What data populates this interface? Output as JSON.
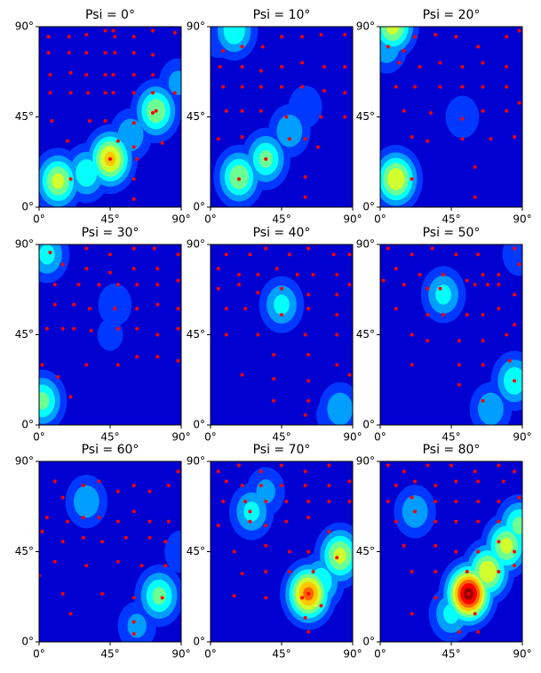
{
  "chart_data": [
    {
      "type": "scatter",
      "title": "Psi = 0°",
      "xlim": [
        0,
        90
      ],
      "ylim": [
        0,
        90
      ],
      "xticks": [
        {
          "value": 0,
          "label": "0°"
        },
        {
          "value": 45,
          "label": "45°"
        },
        {
          "value": 90,
          "label": "90°"
        }
      ],
      "yticks": [
        {
          "value": 0,
          "label": "0°"
        },
        {
          "value": 45,
          "label": "45°"
        },
        {
          "value": 90,
          "label": "90°"
        }
      ],
      "color": "#ff0000",
      "x": [
        6,
        19,
        30,
        42,
        47,
        48,
        60,
        72,
        86,
        6,
        19,
        30,
        42,
        48,
        60,
        72,
        7,
        20,
        30,
        42,
        47,
        60,
        72,
        7,
        20,
        31,
        42,
        47,
        60,
        72,
        86,
        8,
        32,
        42,
        60,
        72,
        18,
        50,
        60,
        62,
        78,
        20,
        45,
        60,
        60,
        74
      ],
      "y": [
        85,
        85,
        86,
        88,
        88,
        85,
        85,
        88,
        87,
        77,
        77,
        77,
        77,
        77,
        77,
        76,
        66,
        67,
        66,
        66,
        66,
        66,
        66,
        57,
        57,
        57,
        57,
        57,
        57,
        57,
        57,
        43,
        43,
        43,
        42,
        47,
        33,
        33,
        30,
        24,
        32,
        14,
        24,
        14,
        4,
        48
      ],
      "density": {
        "x": [
          12,
          45,
          30,
          74,
          88,
          58
        ],
        "y": [
          13,
          24,
          17,
          48,
          62,
          36
        ],
        "level": [
          0.55,
          0.65,
          0.4,
          0.5,
          0.25,
          0.3
        ]
      }
    },
    {
      "type": "scatter",
      "title": "Psi = 10°",
      "xlim": [
        0,
        90
      ],
      "ylim": [
        0,
        90
      ],
      "xticks": [
        {
          "value": 0,
          "label": "0°"
        },
        {
          "value": 45,
          "label": "45°"
        },
        {
          "value": 90,
          "label": "90°"
        }
      ],
      "yticks": [
        {
          "value": 0,
          "label": "0°"
        },
        {
          "value": 45,
          "label": "45°"
        },
        {
          "value": 90,
          "label": "90°"
        }
      ],
      "color": "#ff0000",
      "x": [
        8,
        20,
        33,
        45,
        58,
        70,
        85,
        6,
        20,
        32,
        45,
        58,
        72,
        85,
        8,
        20,
        32,
        45,
        58,
        72,
        85,
        10,
        20,
        32,
        48,
        70,
        85,
        20,
        50,
        60,
        68,
        35,
        18,
        60,
        60,
        5
      ],
      "y": [
        78,
        80,
        80,
        85,
        85,
        86,
        86,
        70,
        70,
        68,
        70,
        72,
        70,
        70,
        60,
        60,
        60,
        60,
        60,
        58,
        57,
        48,
        48,
        48,
        45,
        45,
        45,
        35,
        34,
        34,
        30,
        24,
        14,
        15,
        5,
        34
      ],
      "density": {
        "x": [
          18,
          35,
          50,
          60,
          15,
          5
        ],
        "y": [
          15,
          24,
          38,
          50,
          88,
          85
        ],
        "level": [
          0.5,
          0.45,
          0.3,
          0.2,
          0.4,
          0.2
        ]
      }
    },
    {
      "type": "scatter",
      "title": "Psi = 20°",
      "xlim": [
        0,
        90
      ],
      "ylim": [
        0,
        90
      ],
      "xticks": [
        {
          "value": 0,
          "label": "0°"
        },
        {
          "value": 45,
          "label": "45°"
        },
        {
          "value": 90,
          "label": "90°"
        }
      ],
      "yticks": [
        {
          "value": 0,
          "label": "0°"
        },
        {
          "value": 45,
          "label": "45°"
        },
        {
          "value": 90,
          "label": "90°"
        }
      ],
      "color": "#ff0000",
      "x": [
        5,
        15,
        22,
        35,
        48,
        62,
        80,
        88,
        12,
        25,
        38,
        52,
        65,
        80,
        10,
        22,
        38,
        52,
        65,
        80,
        88,
        15,
        32,
        52,
        65,
        80,
        20,
        30,
        52,
        70,
        20,
        60,
        60,
        85
      ],
      "y": [
        80,
        78,
        85,
        86,
        85,
        80,
        85,
        88,
        72,
        70,
        72,
        70,
        72,
        70,
        60,
        60,
        60,
        60,
        60,
        60,
        52,
        48,
        47,
        44,
        48,
        48,
        35,
        33,
        34,
        34,
        14,
        20,
        5,
        35
      ],
      "density": {
        "x": [
          10,
          8,
          4,
          52
        ],
        "y": [
          14,
          90,
          80,
          45
        ],
        "level": [
          0.6,
          0.55,
          0.3,
          0.2
        ]
      }
    },
    {
      "type": "scatter",
      "title": "Psi = 30°",
      "xlim": [
        0,
        90
      ],
      "ylim": [
        0,
        90
      ],
      "xticks": [
        {
          "value": 0,
          "label": "0°"
        },
        {
          "value": 45,
          "label": "45°"
        },
        {
          "value": 90,
          "label": "90°"
        }
      ],
      "yticks": [
        {
          "value": 0,
          "label": "0°"
        },
        {
          "value": 45,
          "label": "45°"
        },
        {
          "value": 90,
          "label": "90°"
        }
      ],
      "color": "#ff0000",
      "x": [
        7,
        30,
        45,
        60,
        73,
        88,
        15,
        30,
        45,
        60,
        75,
        10,
        25,
        38,
        50,
        62,
        75,
        88,
        10,
        22,
        32,
        48,
        62,
        75,
        88,
        5,
        15,
        22,
        33,
        50,
        62,
        75,
        88,
        2,
        12,
        20,
        30,
        50,
        62,
        75,
        88
      ],
      "y": [
        86,
        88,
        85,
        88,
        88,
        85,
        80,
        78,
        76,
        78,
        78,
        70,
        70,
        70,
        70,
        70,
        70,
        72,
        60,
        60,
        58,
        58,
        58,
        60,
        58,
        48,
        48,
        48,
        47,
        48,
        48,
        45,
        48,
        30,
        24,
        14,
        30,
        30,
        34,
        34,
        32
      ],
      "density": {
        "x": [
          2,
          5,
          48,
          45
        ],
        "y": [
          12,
          85,
          60,
          45
        ],
        "level": [
          0.45,
          0.35,
          0.2,
          0.15
        ]
      }
    },
    {
      "type": "scatter",
      "title": "Psi = 40°",
      "xlim": [
        0,
        90
      ],
      "ylim": [
        0,
        90
      ],
      "xticks": [
        {
          "value": 0,
          "label": "0°"
        },
        {
          "value": 45,
          "label": "45°"
        },
        {
          "value": 90,
          "label": "90°"
        }
      ],
      "yticks": [
        {
          "value": 0,
          "label": "0°"
        },
        {
          "value": 45,
          "label": "45°"
        },
        {
          "value": 90,
          "label": "90°"
        }
      ],
      "color": "#ff0000",
      "x": [
        10,
        25,
        35,
        50,
        62,
        78,
        88,
        5,
        18,
        30,
        42,
        55,
        65,
        80,
        5,
        18,
        30,
        45,
        62,
        80,
        88,
        10,
        22,
        45,
        62,
        80,
        10,
        30,
        60,
        80,
        40,
        62,
        80,
        20,
        40,
        62,
        40,
        62,
        60,
        88
      ],
      "y": [
        85,
        85,
        88,
        85,
        88,
        85,
        85,
        78,
        75,
        75,
        78,
        75,
        75,
        75,
        68,
        70,
        66,
        68,
        65,
        65,
        70,
        58,
        58,
        55,
        58,
        55,
        45,
        45,
        45,
        45,
        35,
        35,
        30,
        25,
        23,
        22,
        12,
        12,
        5,
        25
      ],
      "density": {
        "x": [
          45,
          82,
          75
        ],
        "y": [
          60,
          8,
          5
        ],
        "level": [
          0.35,
          0.3,
          0.15
        ]
      }
    },
    {
      "type": "scatter",
      "title": "Psi = 50°",
      "xlim": [
        0,
        90
      ],
      "ylim": [
        0,
        90
      ],
      "xticks": [
        {
          "value": 0,
          "label": "0°"
        },
        {
          "value": 45,
          "label": "45°"
        },
        {
          "value": 90,
          "label": "90°"
        }
      ],
      "yticks": [
        {
          "value": 0,
          "label": "0°"
        },
        {
          "value": 45,
          "label": "45°"
        },
        {
          "value": 90,
          "label": "90°"
        }
      ],
      "color": "#ff0000",
      "x": [
        5,
        20,
        33,
        48,
        62,
        85,
        10,
        25,
        40,
        55,
        65,
        75,
        88,
        2,
        15,
        30,
        38,
        60,
        68,
        75,
        85,
        10,
        30,
        40,
        55,
        65,
        75,
        85,
        20,
        30,
        50,
        65,
        80,
        20,
        50,
        65,
        82,
        50,
        85,
        65
      ],
      "y": [
        88,
        85,
        88,
        85,
        85,
        88,
        78,
        75,
        75,
        72,
        75,
        75,
        80,
        72,
        70,
        68,
        68,
        70,
        70,
        70,
        65,
        58,
        55,
        55,
        55,
        55,
        58,
        50,
        45,
        42,
        42,
        42,
        45,
        30,
        30,
        30,
        32,
        20,
        22,
        12
      ],
      "density": {
        "x": [
          40,
          85,
          70,
          88
        ],
        "y": [
          65,
          22,
          8,
          85
        ],
        "level": [
          0.35,
          0.4,
          0.3,
          0.2
        ]
      }
    },
    {
      "type": "scatter",
      "title": "Psi = 60°",
      "xlim": [
        0,
        90
      ],
      "ylim": [
        0,
        90
      ],
      "xticks": [
        {
          "value": 0,
          "label": "0°"
        },
        {
          "value": 45,
          "label": "45°"
        },
        {
          "value": 90,
          "label": "90°"
        }
      ],
      "yticks": [
        {
          "value": 0,
          "label": "0°"
        },
        {
          "value": 45,
          "label": "45°"
        },
        {
          "value": 90,
          "label": "90°"
        }
      ],
      "color": "#ff0000",
      "x": [
        10,
        15,
        28,
        38,
        50,
        60,
        70,
        82,
        88,
        5,
        18,
        28,
        38,
        50,
        60,
        70,
        82,
        2,
        15,
        28,
        40,
        55,
        70,
        80,
        10,
        30,
        50,
        65,
        80,
        0,
        15,
        40,
        60,
        20,
        60,
        60,
        78
      ],
      "y": [
        80,
        72,
        78,
        80,
        75,
        78,
        75,
        78,
        85,
        62,
        60,
        62,
        62,
        60,
        65,
        60,
        60,
        55,
        50,
        52,
        50,
        52,
        52,
        50,
        40,
        38,
        40,
        38,
        38,
        33,
        24,
        24,
        22,
        14,
        10,
        4,
        22
      ],
      "density": {
        "x": [
          30,
          76,
          62,
          90
        ],
        "y": [
          70,
          23,
          8,
          45
        ],
        "level": [
          0.3,
          0.45,
          0.25,
          0.2
        ]
      }
    },
    {
      "type": "scatter",
      "title": "Psi = 70°",
      "xlim": [
        0,
        90
      ],
      "ylim": [
        0,
        90
      ],
      "xticks": [
        {
          "value": 0,
          "label": "0°"
        },
        {
          "value": 45,
          "label": "45°"
        },
        {
          "value": 90,
          "label": "90°"
        }
      ],
      "yticks": [
        {
          "value": 0,
          "label": "0°"
        },
        {
          "value": 45,
          "label": "45°"
        },
        {
          "value": 90,
          "label": "90°"
        }
      ],
      "color": "#ff0000",
      "x": [
        5,
        18,
        32,
        45,
        60,
        75,
        10,
        20,
        32,
        45,
        60,
        75,
        88,
        8,
        22,
        35,
        48,
        62,
        75,
        88,
        5,
        25,
        35,
        48,
        62,
        75,
        15,
        35,
        50,
        62,
        80,
        20,
        35,
        50,
        65,
        15,
        35,
        58,
        62,
        70,
        60,
        62,
        25
      ],
      "y": [
        85,
        88,
        85,
        88,
        85,
        88,
        80,
        78,
        78,
        78,
        78,
        78,
        80,
        70,
        70,
        70,
        70,
        70,
        70,
        70,
        58,
        60,
        58,
        60,
        62,
        55,
        45,
        48,
        45,
        45,
        42,
        34,
        35,
        35,
        35,
        23,
        22,
        22,
        24,
        18,
        12,
        5,
        65
      ],
      "density": {
        "x": [
          62,
          82,
          26,
          35,
          70
        ],
        "y": [
          24,
          43,
          65,
          75,
          30
        ],
        "level": [
          0.75,
          0.55,
          0.35,
          0.25,
          0.4
        ]
      }
    },
    {
      "type": "scatter",
      "title": "Psi = 80°",
      "xlim": [
        0,
        90
      ],
      "ylim": [
        0,
        90
      ],
      "xticks": [
        {
          "value": 0,
          "label": "0°"
        },
        {
          "value": 45,
          "label": "45°"
        },
        {
          "value": 90,
          "label": "90°"
        }
      ],
      "yticks": [
        {
          "value": 0,
          "label": "0°"
        },
        {
          "value": 45,
          "label": "45°"
        },
        {
          "value": 90,
          "label": "90°"
        }
      ],
      "color": "#ff0000",
      "x": [
        5,
        15,
        30,
        45,
        60,
        75,
        85,
        10,
        22,
        35,
        48,
        62,
        78,
        5,
        20,
        35,
        48,
        62,
        75,
        88,
        10,
        22,
        35,
        48,
        62,
        75,
        15,
        35,
        48,
        62,
        75,
        85,
        20,
        35,
        55,
        75,
        85,
        35,
        56,
        20,
        60,
        62,
        50
      ],
      "y": [
        88,
        85,
        88,
        88,
        85,
        88,
        85,
        78,
        80,
        78,
        80,
        80,
        80,
        70,
        72,
        70,
        70,
        70,
        70,
        72,
        60,
        65,
        60,
        60,
        60,
        60,
        48,
        48,
        45,
        45,
        50,
        45,
        35,
        35,
        35,
        35,
        38,
        22,
        24,
        14,
        14,
        5,
        5
      ],
      "density": {
        "x": [
          56,
          68,
          80,
          88,
          22,
          45
        ],
        "y": [
          24,
          35,
          48,
          58,
          65,
          14
        ],
        "level": [
          0.95,
          0.6,
          0.55,
          0.45,
          0.3,
          0.35
        ]
      }
    }
  ]
}
